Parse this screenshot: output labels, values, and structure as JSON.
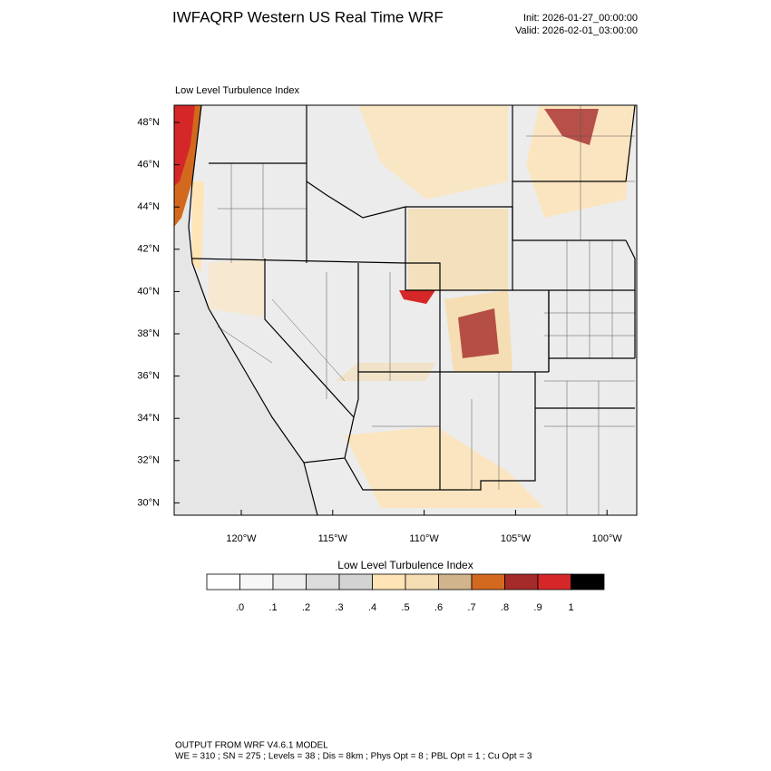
{
  "header": {
    "title": "IWFAQRP Western US Real Time WRF",
    "init": "Init: 2026-01-27_00:00:00",
    "valid": "Valid: 2026-02-01_03:00:00"
  },
  "map": {
    "panel_label": "Low Level Turbulence Index",
    "lat_labels": [
      "48°N",
      "46°N",
      "44°N",
      "42°N",
      "40°N",
      "38°N",
      "36°N",
      "34°N",
      "32°N",
      "30°N"
    ],
    "lon_labels": [
      "120°W",
      "115°W",
      "110°W",
      "105°W",
      "100°W"
    ]
  },
  "colorbar": {
    "title": "Low Level Turbulence Index",
    "labels": [
      ".0",
      ".1",
      ".2",
      ".3",
      ".4",
      ".5",
      ".6",
      ".7",
      ".8",
      ".9",
      "1"
    ],
    "colors": [
      "#ffffff",
      "#f7f7f7",
      "#eeeeee",
      "#dcdcdc",
      "#d3d3d3",
      "#ffe4b5",
      "#f5deb3",
      "#d2b48c",
      "#d2691e",
      "#a52a2a",
      "#d62728",
      "#000000"
    ]
  },
  "footer": {
    "line1": "OUTPUT FROM WRF V4.6.1 MODEL",
    "line2": "WE = 310 ; SN = 275 ; Levels = 38 ; Dis = 8km ; Phys Opt = 8 ; PBL Opt = 1 ; Cu Opt = 3"
  }
}
